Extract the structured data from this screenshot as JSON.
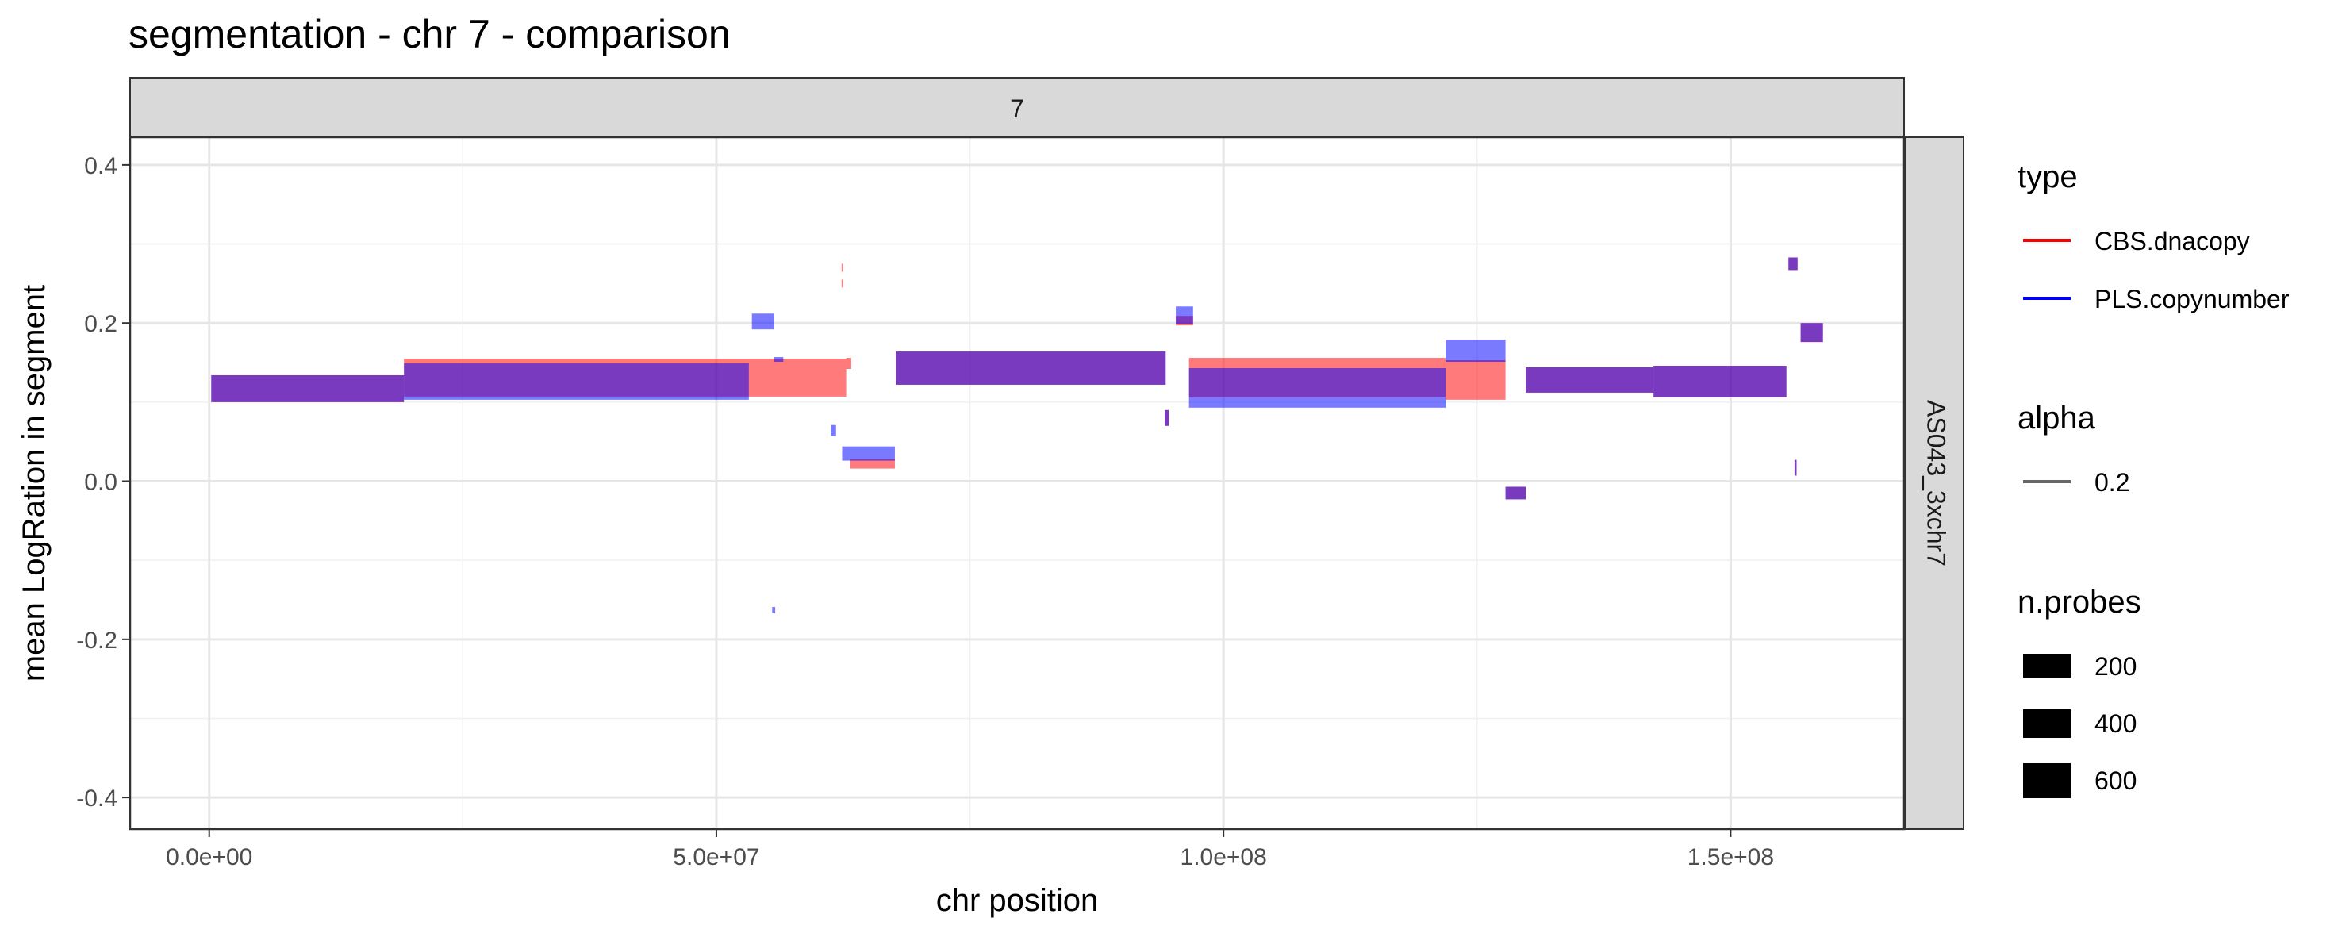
{
  "chart_data": {
    "type": "bar",
    "title": "segmentation - chr 7 - comparison",
    "xlabel": "chr position",
    "ylabel": "mean LogRation in segment",
    "facet_top": "7",
    "facet_right": "AS043_3xchr7",
    "xlim": [
      -7800000,
      167100000
    ],
    "ylim": [
      -0.44,
      0.435
    ],
    "xticks": [
      0,
      50000000,
      100000000,
      150000000
    ],
    "xtick_labels": [
      "0.0e+00",
      "5.0e+07",
      "1.0e+08",
      "1.5e+08"
    ],
    "yticks": [
      -0.4,
      -0.2,
      0.0,
      0.2,
      0.4
    ],
    "ytick_labels": [
      "-0.4",
      "-0.2",
      "0.0",
      "0.2",
      "0.4"
    ],
    "grid": true,
    "legend_position": "right",
    "series": [
      {
        "name": "CBS.dnacopy",
        "color": "#ff0000",
        "segments": [
          {
            "start": 200000,
            "end": 19200000,
            "mean": 0.117,
            "h": 0.034
          },
          {
            "start": 19200000,
            "end": 62800000,
            "mean": 0.131,
            "h": 0.048
          },
          {
            "start": 62800000,
            "end": 63300000,
            "mean": 0.149,
            "h": 0.014
          },
          {
            "start": 62350000,
            "end": 62500000,
            "mean": 0.27,
            "h": 0.01
          },
          {
            "start": 62350000,
            "end": 62500000,
            "mean": 0.25,
            "h": 0.01
          },
          {
            "start": 63200000,
            "end": 67600000,
            "mean": 0.022,
            "h": 0.012
          },
          {
            "start": 67700000,
            "end": 94300000,
            "mean": 0.143,
            "h": 0.042
          },
          {
            "start": 94200000,
            "end": 94600000,
            "mean": 0.08,
            "h": 0.02
          },
          {
            "start": 95300000,
            "end": 97000000,
            "mean": 0.203,
            "h": 0.012
          },
          {
            "start": 96600000,
            "end": 121900000,
            "mean": 0.131,
            "h": 0.05
          },
          {
            "start": 121900000,
            "end": 127800000,
            "mean": 0.128,
            "h": 0.05
          },
          {
            "start": 127800000,
            "end": 129800000,
            "mean": -0.015,
            "h": 0.016
          },
          {
            "start": 129800000,
            "end": 142400000,
            "mean": 0.128,
            "h": 0.032
          },
          {
            "start": 142400000,
            "end": 155500000,
            "mean": 0.126,
            "h": 0.04
          },
          {
            "start": 155700000,
            "end": 156600000,
            "mean": 0.275,
            "h": 0.016
          },
          {
            "start": 156300000,
            "end": 156500000,
            "mean": 0.017,
            "h": 0.02
          },
          {
            "start": 156900000,
            "end": 159100000,
            "mean": 0.188,
            "h": 0.024
          }
        ]
      },
      {
        "name": "PLS.copynumber",
        "color": "#0000ff",
        "segments": [
          {
            "start": 200000,
            "end": 19200000,
            "mean": 0.117,
            "h": 0.034
          },
          {
            "start": 19200000,
            "end": 53200000,
            "mean": 0.126,
            "h": 0.046
          },
          {
            "start": 53500000,
            "end": 55700000,
            "mean": 0.202,
            "h": 0.02
          },
          {
            "start": 55700000,
            "end": 56600000,
            "mean": 0.154,
            "h": 0.006
          },
          {
            "start": 55500000,
            "end": 55800000,
            "mean": -0.163,
            "h": 0.008
          },
          {
            "start": 61300000,
            "end": 61800000,
            "mean": 0.064,
            "h": 0.014
          },
          {
            "start": 62400000,
            "end": 67600000,
            "mean": 0.035,
            "h": 0.018
          },
          {
            "start": 67700000,
            "end": 94300000,
            "mean": 0.143,
            "h": 0.042
          },
          {
            "start": 94200000,
            "end": 94600000,
            "mean": 0.08,
            "h": 0.02
          },
          {
            "start": 95300000,
            "end": 97000000,
            "mean": 0.21,
            "h": 0.022
          },
          {
            "start": 96600000,
            "end": 121900000,
            "mean": 0.118,
            "h": 0.05
          },
          {
            "start": 121900000,
            "end": 127800000,
            "mean": 0.165,
            "h": 0.028
          },
          {
            "start": 127800000,
            "end": 129800000,
            "mean": -0.015,
            "h": 0.016
          },
          {
            "start": 129800000,
            "end": 142400000,
            "mean": 0.128,
            "h": 0.032
          },
          {
            "start": 142400000,
            "end": 155500000,
            "mean": 0.126,
            "h": 0.04
          },
          {
            "start": 155700000,
            "end": 156600000,
            "mean": 0.275,
            "h": 0.016
          },
          {
            "start": 156300000,
            "end": 156500000,
            "mean": 0.017,
            "h": 0.02
          },
          {
            "start": 156900000,
            "end": 159100000,
            "mean": 0.188,
            "h": 0.024
          }
        ]
      }
    ],
    "legend": {
      "type_title": "type",
      "type_items": [
        {
          "label": "CBS.dnacopy",
          "color": "#ff0000"
        },
        {
          "label": "PLS.copynumber",
          "color": "#0000ff"
        }
      ],
      "alpha_title": "alpha",
      "alpha_items": [
        {
          "label": "0.2",
          "color": "#666666"
        }
      ],
      "size_title": "n.probes",
      "size_items": [
        {
          "label": "200",
          "size": 200
        },
        {
          "label": "400",
          "size": 400
        },
        {
          "label": "600",
          "size": 600
        }
      ]
    }
  }
}
